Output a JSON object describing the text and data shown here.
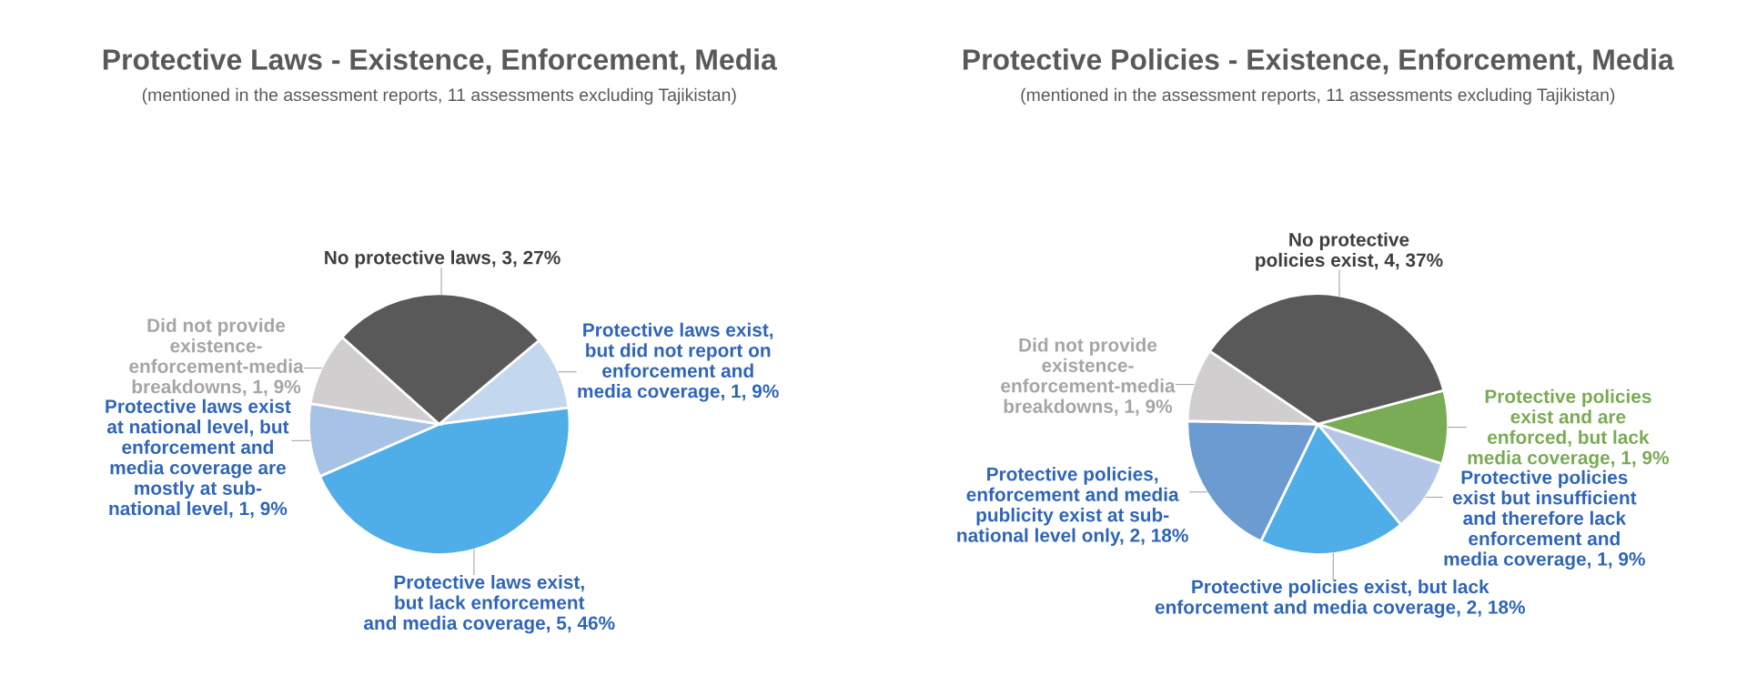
{
  "chart_data": [
    {
      "type": "pie",
      "title": "Protective Laws - Existence, Enforcement, Media",
      "subtitle": "(mentioned in the assessment reports, 11 assessments excluding Tajikistan)",
      "categories": [
        "Protective laws exist,\nbut did not report on\nenforcement and\nmedia coverage",
        "Protective laws exist,\nbut lack enforcement\nand media coverage",
        "Protective laws exist\nat national level, but\nenforcement and\nmedia coverage are\nmostly at sub-\nnational level",
        "Did not provide\nexistence-\nenforcement-media\nbreakdowns",
        "No protective laws"
      ],
      "values": [
        1,
        5,
        1,
        1,
        3
      ],
      "value_labels": [
        "1, 9%",
        "5, 46%",
        "1, 9%",
        "1, 9%",
        "3, 27%"
      ],
      "colors": [
        "#c3d7ee",
        "#4faee8",
        "#a6c2e4",
        "#d0cece",
        "#595959"
      ]
    },
    {
      "type": "pie",
      "title": "Protective Policies - Existence, Enforcement, Media",
      "subtitle": "(mentioned in the assessment reports, 11 assessments excluding Tajikistan)",
      "categories": [
        "Protective policies\nexist and are\nenforced, but lack\nmedia coverage",
        "Protective policies\nexist but insufficient\nand therefore lack\nenforcement and\nmedia coverage",
        "Protective policies exist, but lack\nenforcement and media coverage",
        "Protective policies,\nenforcement and media\npublicity exist at sub-\nnational level only",
        "Did not provide\nexistence-\nenforcement-media\nbreakdowns",
        "No protective\npolicies exist"
      ],
      "values": [
        1,
        1,
        2,
        2,
        1,
        4
      ],
      "value_labels": [
        "1, 9%",
        "1, 9%",
        "2, 18%",
        "2, 18%",
        "1, 9%",
        "4, 37%"
      ],
      "colors": [
        "#7aac55",
        "#b4c6e7",
        "#4faee8",
        "#6b9bd1",
        "#d0cece",
        "#595959"
      ]
    }
  ]
}
